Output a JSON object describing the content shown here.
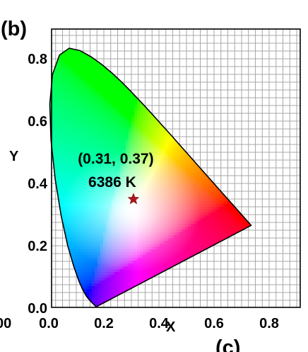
{
  "chart_data": {
    "type": "scatter",
    "panel_label": "(b)",
    "xlabel": "X",
    "ylabel": "Y",
    "xlim": [
      0.0,
      0.8
    ],
    "ylim": [
      0.0,
      0.85
    ],
    "x_ticks": [
      "0.0",
      "0.2",
      "0.4",
      "0.6",
      "0.8"
    ],
    "y_ticks": [
      "0.0",
      "0.2",
      "0.4",
      "0.6",
      "0.8"
    ],
    "grid": true,
    "background": "CIE 1931 chromaticity diagram",
    "points": [
      {
        "x": 0.31,
        "y": 0.37,
        "marker": "star",
        "color": "#b0151b",
        "annotation_line1": "(0.31, 0.37)",
        "annotation_line2": "6386 K"
      }
    ]
  },
  "clipped_labels": {
    "left_partial_tick": "00",
    "bottom_partial_label": "(c)"
  }
}
